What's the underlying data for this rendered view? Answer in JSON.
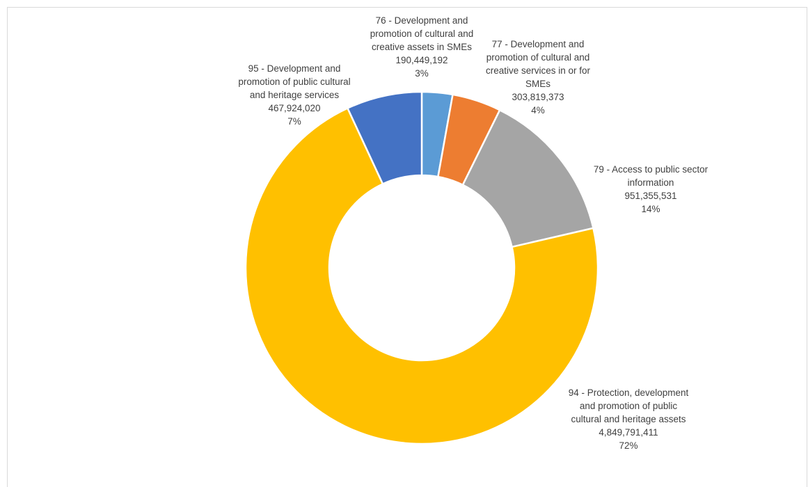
{
  "chart_data": {
    "type": "pie",
    "subtype": "doughnut",
    "title": "",
    "legend": "none",
    "slices": [
      {
        "label_lines": [
          "76 - Development and",
          "promotion of cultural and",
          "creative assets in SMEs"
        ],
        "value": 190449192,
        "value_text": "190,449,192",
        "percent_text": "3%",
        "color": "#5b9bd5"
      },
      {
        "label_lines": [
          "77 - Development and",
          "promotion of cultural and",
          "creative services in or for",
          "SMEs"
        ],
        "value": 303819373,
        "value_text": "303,819,373",
        "percent_text": "4%",
        "color": "#ed7d31"
      },
      {
        "label_lines": [
          "79 - Access to public sector",
          "information"
        ],
        "value": 951355531,
        "value_text": "951,355,531",
        "percent_text": "14%",
        "color": "#a5a5a5"
      },
      {
        "label_lines": [
          "94 - Protection, development",
          "and promotion of public",
          "cultural and heritage assets"
        ],
        "value": 4849791411,
        "value_text": "4,849,791,411",
        "percent_text": "72%",
        "color": "#ffc000"
      },
      {
        "label_lines": [
          "95 - Development and",
          "promotion of public cultural",
          "and heritage services"
        ],
        "value": 467924020,
        "value_text": "467,924,020",
        "percent_text": "7%",
        "color": "#4472c4"
      }
    ]
  }
}
